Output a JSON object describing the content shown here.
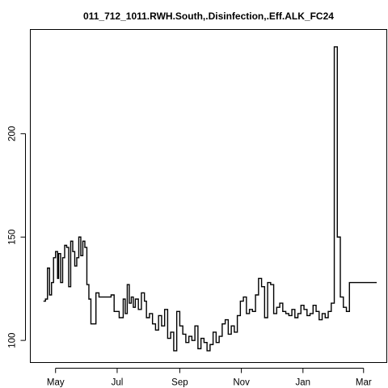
{
  "chart_data": {
    "type": "line",
    "title": "011_712_1011.RWH.South,.Disinfection,.Eff.ALK_FC24",
    "xlabel": "",
    "ylabel": "",
    "x_type": "date",
    "x_ticks": [
      {
        "date": "2011-05-01",
        "label": "May"
      },
      {
        "date": "2011-07-01",
        "label": "Jul"
      },
      {
        "date": "2011-09-01",
        "label": "Sep"
      },
      {
        "date": "2011-11-01",
        "label": "Nov"
      },
      {
        "date": "2012-01-01",
        "label": "Jan"
      },
      {
        "date": "2012-03-01",
        "label": "Mar"
      }
    ],
    "y_ticks": [
      100,
      150,
      200
    ],
    "xlim": [
      "2011-04-06",
      "2012-03-24"
    ],
    "ylim": [
      89.3,
      250.4
    ],
    "grid": false,
    "series": [
      {
        "color": "#000000",
        "step": true,
        "x": [
          "2011-04-19",
          "2011-04-21",
          "2011-04-23",
          "2011-04-25",
          "2011-04-27",
          "2011-04-29",
          "2011-05-01",
          "2011-05-03",
          "2011-05-04",
          "2011-05-06",
          "2011-05-08",
          "2011-05-10",
          "2011-05-12",
          "2011-05-14",
          "2011-05-16",
          "2011-05-18",
          "2011-05-20",
          "2011-05-22",
          "2011-05-24",
          "2011-05-26",
          "2011-05-28",
          "2011-05-30",
          "2011-06-01",
          "2011-06-03",
          "2011-06-05",
          "2011-06-07",
          "2011-06-10",
          "2011-06-13",
          "2011-06-25",
          "2011-06-28",
          "2011-07-03",
          "2011-07-07",
          "2011-07-09",
          "2011-07-11",
          "2011-07-13",
          "2011-07-15",
          "2011-07-17",
          "2011-07-19",
          "2011-07-22",
          "2011-07-25",
          "2011-07-28",
          "2011-07-30",
          "2011-08-02",
          "2011-08-05",
          "2011-08-08",
          "2011-08-11",
          "2011-08-14",
          "2011-08-17",
          "2011-08-20",
          "2011-08-23",
          "2011-08-26",
          "2011-08-29",
          "2011-09-01",
          "2011-09-04",
          "2011-09-07",
          "2011-09-10",
          "2011-09-13",
          "2011-09-16",
          "2011-09-19",
          "2011-09-22",
          "2011-09-25",
          "2011-09-28",
          "2011-10-01",
          "2011-10-04",
          "2011-10-07",
          "2011-10-10",
          "2011-10-13",
          "2011-10-16",
          "2011-10-19",
          "2011-10-22",
          "2011-10-25",
          "2011-10-28",
          "2011-10-31",
          "2011-11-03",
          "2011-11-06",
          "2011-11-09",
          "2011-11-12",
          "2011-11-15",
          "2011-11-18",
          "2011-11-21",
          "2011-11-24",
          "2011-11-27",
          "2011-11-30",
          "2011-12-03",
          "2011-12-06",
          "2011-12-09",
          "2011-12-12",
          "2011-12-15",
          "2011-12-18",
          "2011-12-21",
          "2011-12-24",
          "2011-12-27",
          "2011-12-30",
          "2012-01-02",
          "2012-01-05",
          "2012-01-08",
          "2012-01-11",
          "2012-01-14",
          "2012-01-17",
          "2012-01-20",
          "2012-01-23",
          "2012-01-26",
          "2012-01-29",
          "2012-02-01",
          "2012-02-04",
          "2012-02-07",
          "2012-02-10",
          "2012-02-13",
          "2012-02-16",
          "2012-02-18",
          "2012-02-19",
          "2012-02-20",
          "2012-02-22",
          "2012-02-23",
          "2012-02-24",
          "2012-02-25",
          "2012-02-27",
          "2012-03-01",
          "2012-03-14"
        ],
        "y": [
          119,
          120,
          135,
          122,
          128,
          140,
          143,
          130,
          142,
          128,
          140,
          146,
          145,
          126,
          148,
          143,
          136,
          140,
          150,
          141,
          148,
          145,
          127,
          120,
          108,
          108,
          123,
          121,
          122,
          114,
          111,
          120,
          113,
          127,
          118,
          121,
          116,
          120,
          115,
          123,
          119,
          111,
          113,
          108,
          105,
          112,
          107,
          115,
          101,
          104,
          95,
          114,
          107,
          103,
          99,
          102,
          100,
          107,
          96,
          101,
          99,
          95,
          98,
          104,
          99,
          102,
          108,
          110,
          103,
          107,
          104,
          112,
          119,
          121,
          113,
          115,
          114,
          122,
          130,
          126,
          111,
          128,
          127,
          113,
          116,
          118,
          114,
          113,
          112,
          115,
          111,
          113,
          117,
          115,
          112,
          113,
          117,
          114,
          110,
          113,
          111,
          114,
          118,
          242,
          150,
          121,
          116,
          114,
          128,
          128,
          128,
          128,
          128,
          128,
          128,
          128,
          128,
          128,
          128
        ]
      }
    ]
  }
}
